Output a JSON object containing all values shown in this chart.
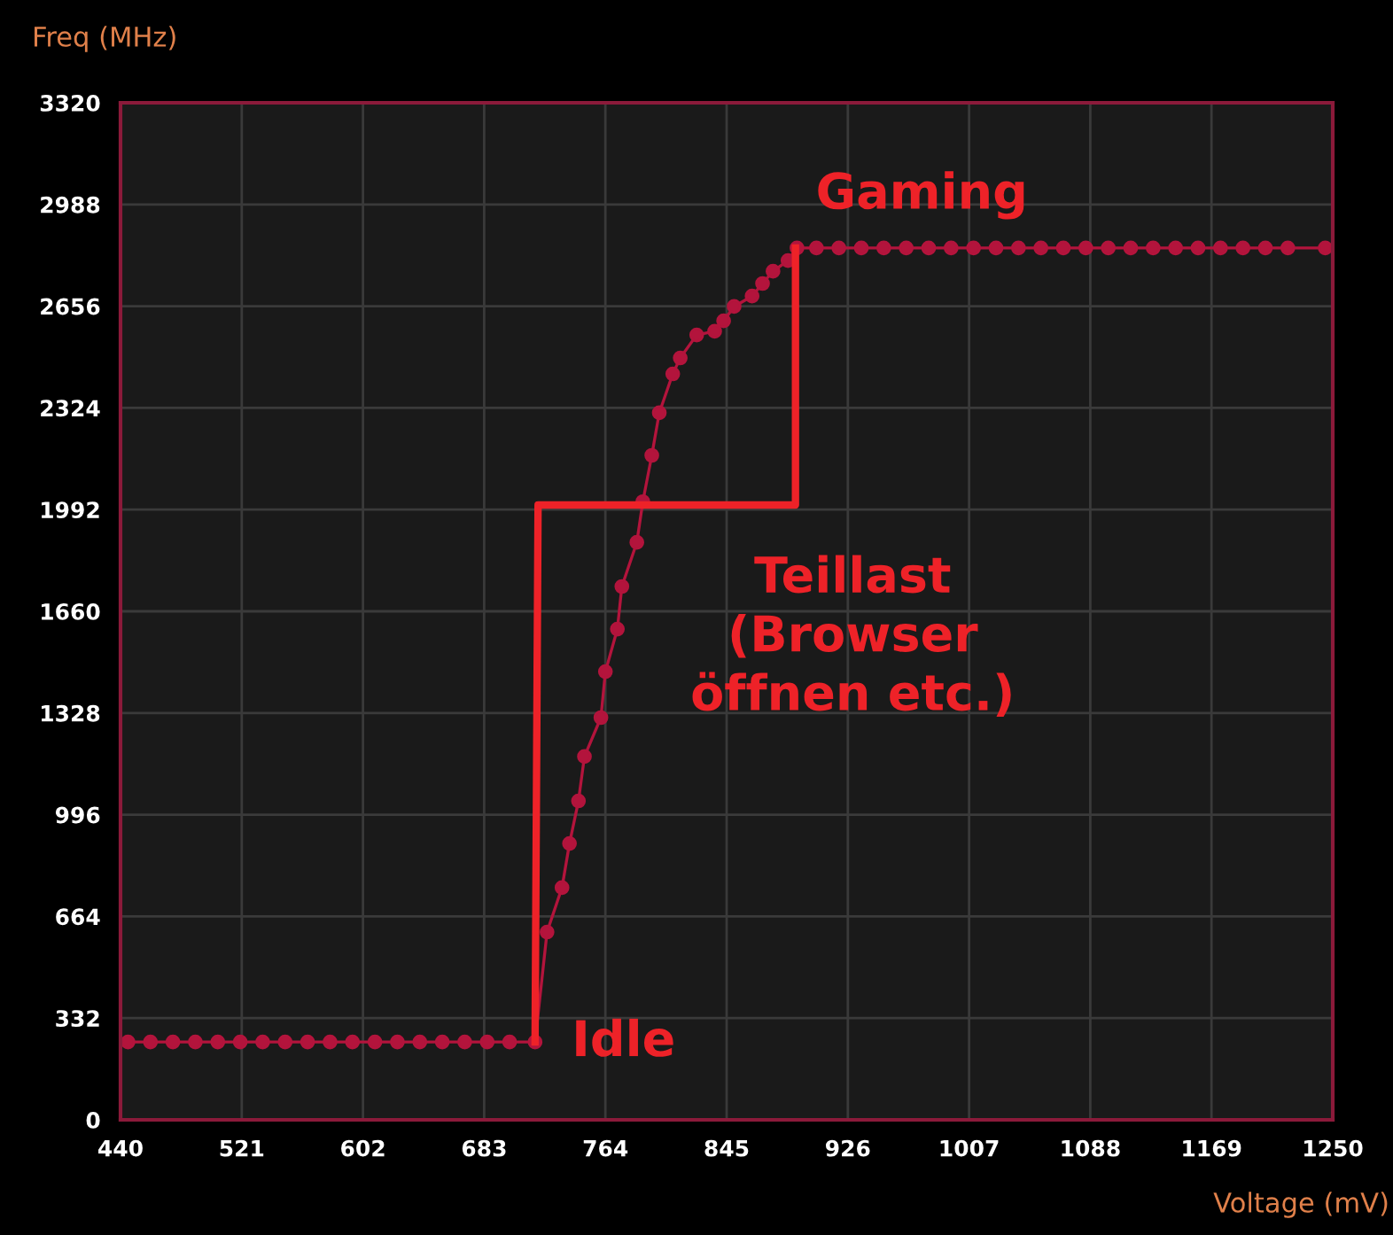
{
  "chart_data": {
    "type": "line",
    "xlabel": "Voltage (mV)",
    "ylabel": "Freq (MHz)",
    "xlim": [
      440,
      1250
    ],
    "xticks": [
      440,
      521,
      602,
      683,
      764,
      845,
      926,
      1007,
      1088,
      1169,
      1250
    ],
    "ylim": [
      0,
      3320
    ],
    "yticks": [
      0,
      332,
      664,
      996,
      1328,
      1660,
      1992,
      2324,
      2656,
      2988,
      3320
    ],
    "grid": true,
    "legend": false,
    "series": [
      {
        "color": "#b3143c",
        "marker": "circle",
        "line_style": "solid",
        "x": [
          445,
          460,
          475,
          490,
          505,
          520,
          535,
          550,
          565,
          580,
          595,
          610,
          625,
          640,
          655,
          670,
          685,
          700,
          717,
          725,
          735,
          740,
          746,
          750,
          761,
          764,
          772,
          775,
          785,
          789,
          795,
          800,
          809,
          814,
          825,
          837,
          843,
          850,
          862,
          869,
          876,
          886,
          892,
          905,
          920,
          935,
          950,
          965,
          980,
          995,
          1010,
          1025,
          1040,
          1055,
          1070,
          1085,
          1100,
          1115,
          1130,
          1145,
          1160,
          1175,
          1190,
          1205,
          1220,
          1245
        ],
        "values": [
          254,
          254,
          254,
          254,
          254,
          254,
          254,
          254,
          254,
          254,
          254,
          254,
          254,
          254,
          254,
          254,
          254,
          254,
          254,
          613,
          758,
          902,
          1041,
          1186,
          1313,
          1463,
          1602,
          1741,
          1885,
          2018,
          2169,
          2308,
          2435,
          2487,
          2562,
          2574,
          2608,
          2655,
          2689,
          2730,
          2770,
          2805,
          2846,
          2846,
          2846,
          2846,
          2846,
          2846,
          2846,
          2846,
          2846,
          2846,
          2846,
          2846,
          2846,
          2846,
          2846,
          2846,
          2846,
          2846,
          2846,
          2846,
          2846,
          2846,
          2846,
          2846
        ]
      },
      {
        "color": "#ee2228",
        "marker": "none",
        "line_style": "solid",
        "x": [
          717,
          719,
          891,
          891
        ],
        "values": [
          254,
          2007,
          2007,
          2846
        ]
      }
    ],
    "annotations": [
      "Gaming",
      "Teillast\n(Browser\nöffnen etc.)",
      "Idle"
    ]
  }
}
